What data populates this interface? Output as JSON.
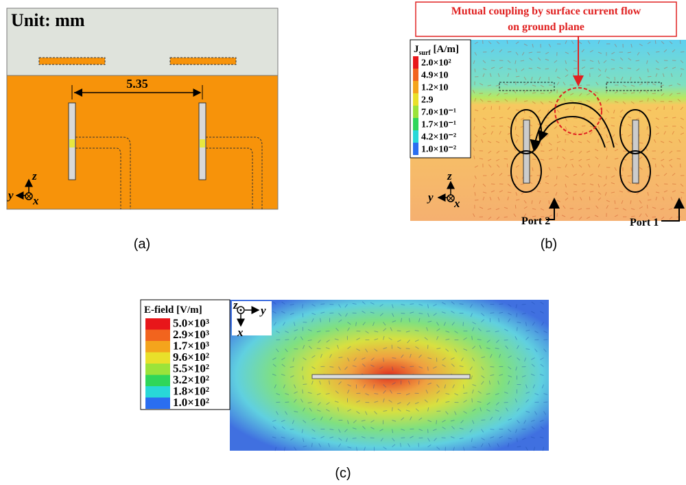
{
  "panels": [
    {
      "label": "(a)",
      "unit_note": "Unit: mm",
      "dimension": "5.35",
      "axes": {
        "z": "z",
        "y": "y",
        "x": "x"
      }
    },
    {
      "label": "(b)",
      "annotation": [
        "Mutual coupling by surface current flow",
        "on ground plane"
      ],
      "legend": {
        "title_symbol": "J",
        "title_subscript": "surf",
        "title_unit": " [A/m]",
        "levels": [
          "2.0×10²",
          "4.9×10",
          "1.2×10",
          "2.9",
          "7.0×10⁻¹",
          "1.7×10⁻¹",
          "4.2×10⁻²",
          "1.0×10⁻²"
        ]
      },
      "ports": [
        "Port 2",
        "Port 1"
      ],
      "axes": {
        "z": "z",
        "y": "y",
        "x": "x"
      }
    },
    {
      "label": "(c)",
      "legend": {
        "title": "E-field [V/m]",
        "levels": [
          "5.0×10³",
          "2.9×10³",
          "1.7×10³",
          "9.6×10²",
          "5.5×10²",
          "3.2×10²",
          "1.8×10²",
          "1.0×10²"
        ]
      },
      "axes": {
        "z": "z",
        "y": "y",
        "x": "x"
      }
    }
  ]
}
